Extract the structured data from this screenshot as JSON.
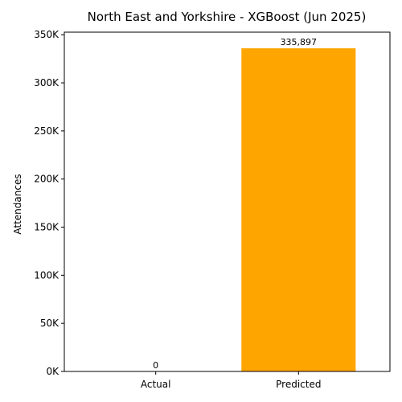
{
  "chart_data": {
    "type": "bar",
    "title": "North East and Yorkshire - XGBoost (Jun 2025)",
    "xlabel": "",
    "ylabel": "Attendances",
    "categories": [
      "Actual",
      "Predicted"
    ],
    "values": [
      0,
      335897
    ],
    "data_labels": [
      "0",
      "335,897"
    ],
    "colors": [
      "#1f77b4",
      "#ffa500"
    ],
    "ylim": [
      0,
      352692
    ],
    "yticks": [
      0,
      50000,
      100000,
      150000,
      200000,
      250000,
      300000,
      350000
    ],
    "ytick_labels": [
      "0K",
      "50K",
      "100K",
      "150K",
      "200K",
      "250K",
      "300K",
      "350K"
    ],
    "grid": false,
    "legend": "none"
  }
}
